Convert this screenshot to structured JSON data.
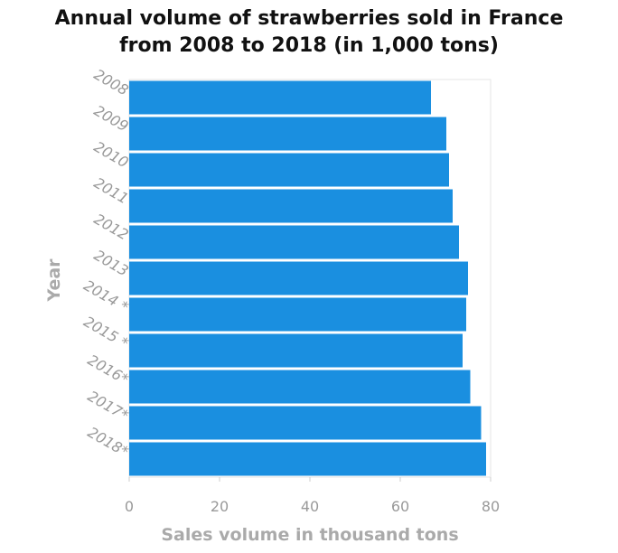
{
  "chart_data": {
    "type": "bar",
    "orientation": "horizontal",
    "title_lines": [
      "Annual volume of strawberries sold in France",
      "from 2008 to 2018 (in 1,000 tons)"
    ],
    "xlabel": "Sales volume in thousand tons",
    "ylabel": "Year",
    "categories": [
      "2008",
      "2009",
      "2010",
      "2011",
      "2012",
      "2013",
      "2014 *",
      "2015 *",
      "2016*",
      "2017*",
      "2018*"
    ],
    "values": [
      66.8,
      70.2,
      70.8,
      71.6,
      73.0,
      75.0,
      74.6,
      73.8,
      75.5,
      77.9,
      79.0
    ],
    "xlim": [
      0,
      80
    ],
    "xticks": [
      "0",
      "20",
      "40",
      "60",
      "80"
    ],
    "bar_color": "#1a8fe0",
    "grid": false
  }
}
